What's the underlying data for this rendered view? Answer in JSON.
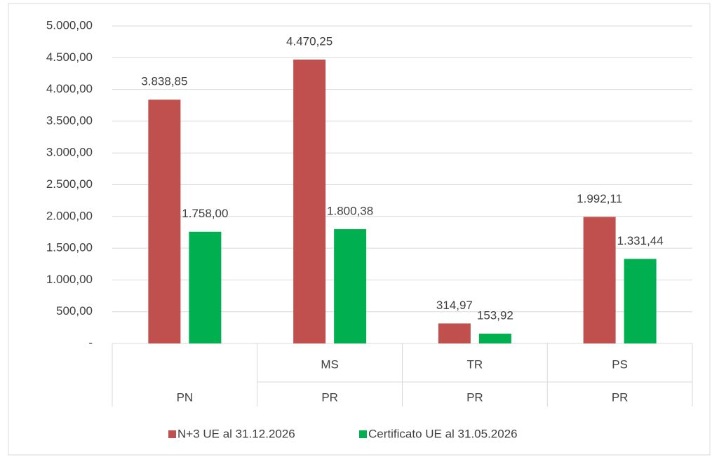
{
  "chart_data": {
    "type": "bar",
    "categories": [
      null,
      "MS",
      "TR",
      "PS"
    ],
    "category_groups": [
      "PN",
      "PR",
      "PR",
      "PR"
    ],
    "series": [
      {
        "name": "N+3 UE al 31.12.2026",
        "color": "#c0504d",
        "values": [
          3838.85,
          4470.25,
          314.97,
          1992.11
        ],
        "value_labels": [
          "3.838,85",
          "4.470,25",
          "314,97",
          "1.992,11"
        ]
      },
      {
        "name": "Certificato UE  al 31.05.2026",
        "color": "#00b050",
        "values": [
          1758.0,
          1800.38,
          153.92,
          1331.44
        ],
        "value_labels": [
          "1.758,00",
          "1.800,38",
          "153,92",
          "1.331,44"
        ]
      }
    ],
    "ylim": [
      0,
      5000
    ],
    "yticks": [
      {
        "value": 0,
        "label": "-"
      },
      {
        "value": 500,
        "label": "500,00"
      },
      {
        "value": 1000,
        "label": "1.000,00"
      },
      {
        "value": 1500,
        "label": "1.500,00"
      },
      {
        "value": 2000,
        "label": "2.000,00"
      },
      {
        "value": 2500,
        "label": "2.500,00"
      },
      {
        "value": 3000,
        "label": "3.000,00"
      },
      {
        "value": 3500,
        "label": "3.500,00"
      },
      {
        "value": 4000,
        "label": "4.000,00"
      },
      {
        "value": 4500,
        "label": "4.500,00"
      },
      {
        "value": 5000,
        "label": "5.000,00"
      }
    ],
    "grid": true,
    "legend": "bottom"
  }
}
